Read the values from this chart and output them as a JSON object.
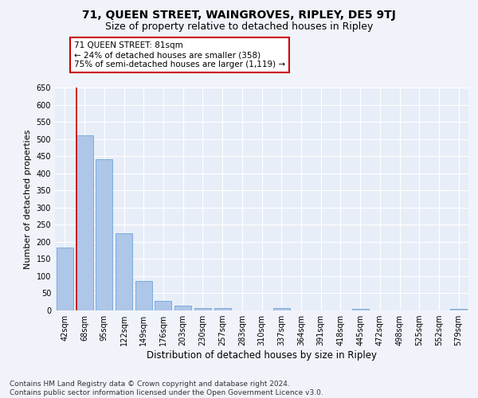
{
  "title": "71, QUEEN STREET, WAINGROVES, RIPLEY, DE5 9TJ",
  "subtitle": "Size of property relative to detached houses in Ripley",
  "xlabel": "Distribution of detached houses by size in Ripley",
  "ylabel": "Number of detached properties",
  "categories": [
    "42sqm",
    "68sqm",
    "95sqm",
    "122sqm",
    "149sqm",
    "176sqm",
    "203sqm",
    "230sqm",
    "257sqm",
    "283sqm",
    "310sqm",
    "337sqm",
    "364sqm",
    "391sqm",
    "418sqm",
    "445sqm",
    "472sqm",
    "498sqm",
    "525sqm",
    "552sqm",
    "579sqm"
  ],
  "values": [
    183,
    510,
    440,
    225,
    85,
    27,
    13,
    8,
    6,
    0,
    0,
    8,
    0,
    0,
    0,
    5,
    0,
    0,
    0,
    0,
    5
  ],
  "bar_color": "#aec6e8",
  "bar_edge_color": "#5b9bd5",
  "highlight_index": 1,
  "highlight_line_color": "#cc0000",
  "annotation_text": "71 QUEEN STREET: 81sqm\n← 24% of detached houses are smaller (358)\n75% of semi-detached houses are larger (1,119) →",
  "annotation_box_color": "#ffffff",
  "annotation_box_edge_color": "#cc0000",
  "ylim": [
    0,
    650
  ],
  "yticks": [
    0,
    50,
    100,
    150,
    200,
    250,
    300,
    350,
    400,
    450,
    500,
    550,
    600,
    650
  ],
  "footer_text": "Contains HM Land Registry data © Crown copyright and database right 2024.\nContains public sector information licensed under the Open Government Licence v3.0.",
  "bg_color": "#f0f4fa",
  "plot_bg_color": "#e8eef8",
  "grid_color": "#ffffff",
  "title_fontsize": 10,
  "subtitle_fontsize": 9,
  "xlabel_fontsize": 8.5,
  "ylabel_fontsize": 8,
  "tick_fontsize": 7,
  "annotation_fontsize": 7.5,
  "footer_fontsize": 6.5
}
